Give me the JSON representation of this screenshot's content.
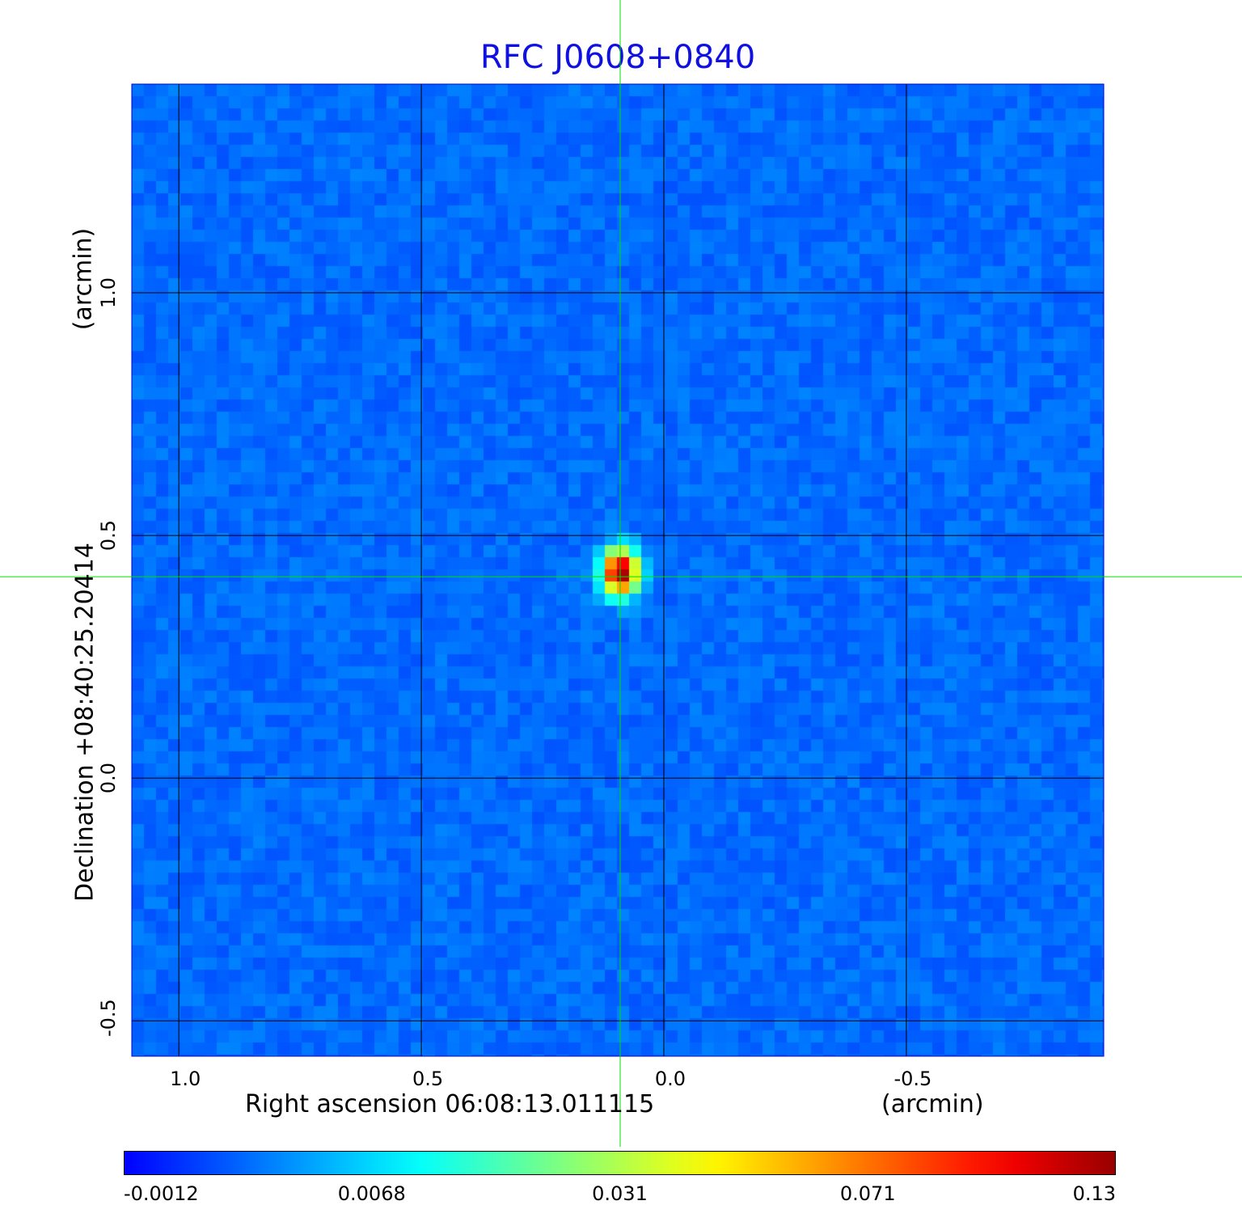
{
  "chart_data": {
    "type": "heatmap",
    "title": "RFC J0608+0840",
    "xlabel": "Right ascension  06:08:13.011115",
    "xunit": "(arcmin)",
    "ylabel": "Declination  +08:40:25.20414",
    "yunit": "(arcmin)",
    "xlim": [
      1.097,
      -0.907
    ],
    "ylim": [
      -0.573,
      1.43
    ],
    "x_ticks": [
      "1.0",
      "0.5",
      "0.0",
      "-0.5"
    ],
    "x_tick_values": [
      1.0,
      0.5,
      0.0,
      -0.5
    ],
    "y_ticks": [
      "1.0",
      "0.5",
      "0.0",
      "-0.5"
    ],
    "y_tick_values": [
      1.0,
      0.5,
      0.0,
      -0.5
    ],
    "grid": true,
    "colormap": "jet",
    "colorbar": {
      "placement": "bottom",
      "ticks": [
        "-0.0012",
        "0.0068",
        "0.031",
        "0.071",
        "0.13"
      ],
      "range": [
        -0.0012,
        0.13
      ]
    },
    "source_peak": {
      "x": 0.09,
      "y": 0.425,
      "value": 0.13
    },
    "crosshair": {
      "x": 0.09,
      "y": 0.415,
      "color": "#00e000"
    },
    "background_level": 0.0
  }
}
